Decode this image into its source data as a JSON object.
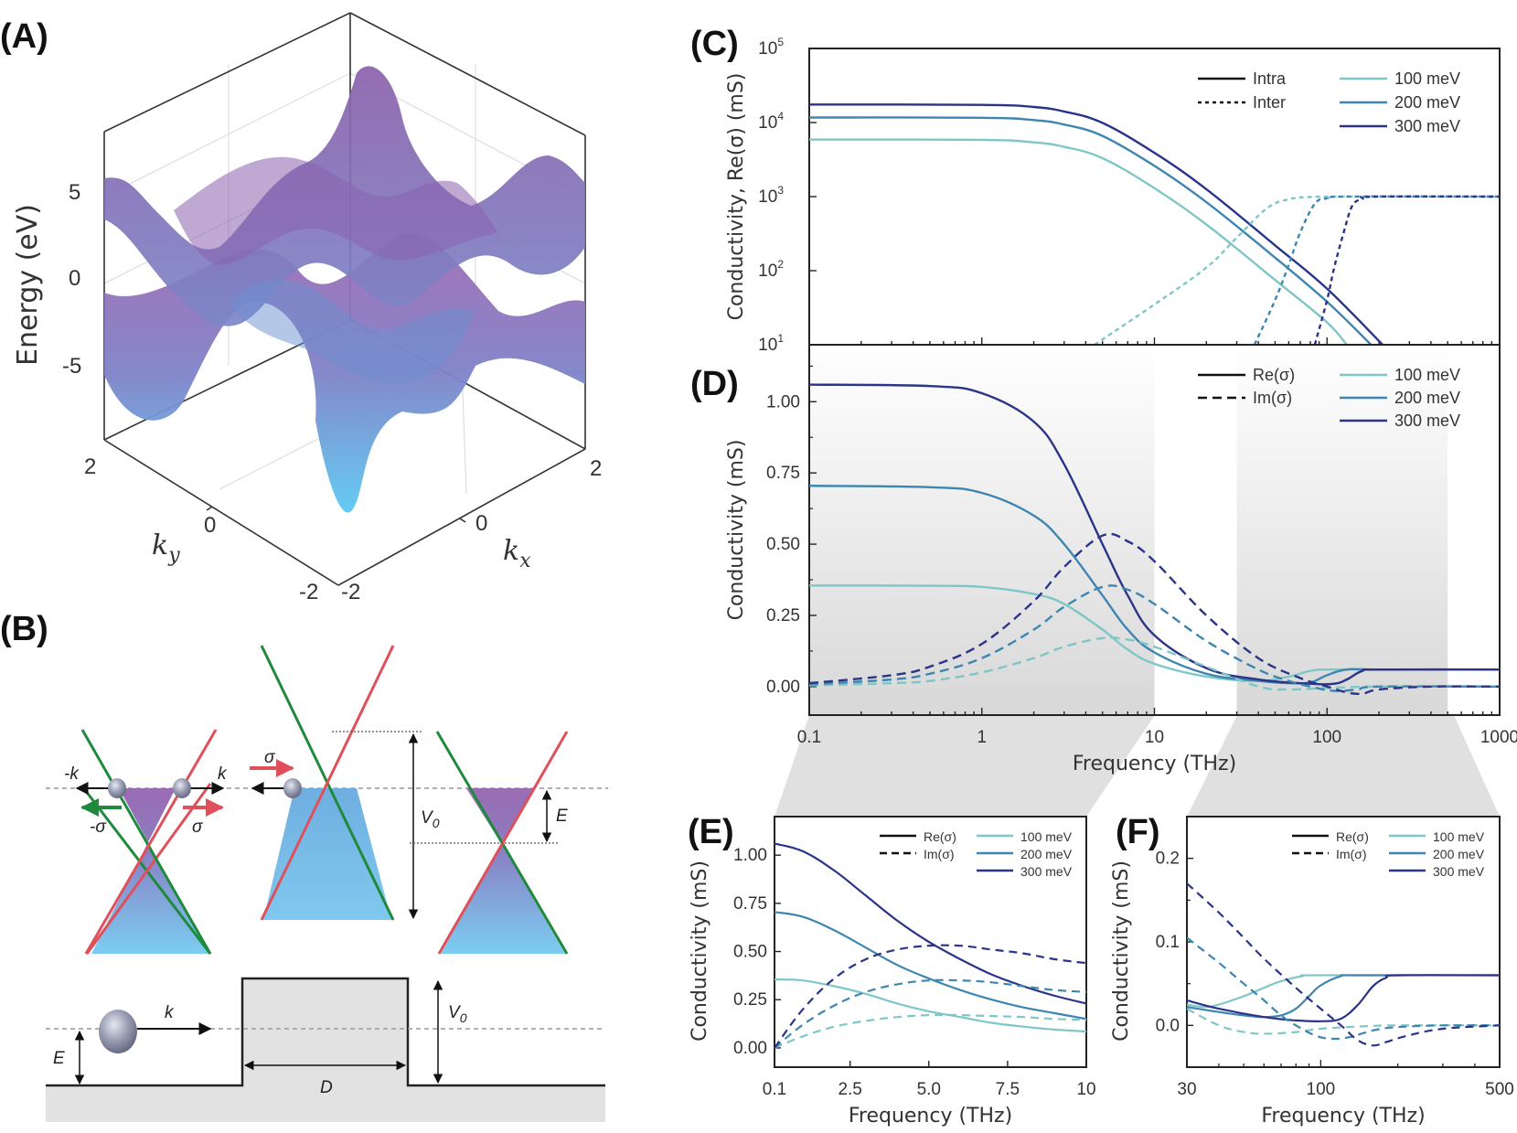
{
  "panels": {
    "A": {
      "label": "(A)",
      "zlabel": "Energy (eV)",
      "zticks": [
        "5",
        "0",
        "-5"
      ],
      "xlabel": "k",
      "xlabel_sub": "x",
      "ylabel": "k",
      "ylabel_sub": "y",
      "xticks": [
        "-2",
        "0",
        "2"
      ],
      "yticks": [
        "2",
        "0",
        "-2"
      ],
      "colors": {
        "top": "#9b67b0",
        "mid": "#7d7fc4",
        "bottom": "#5fc8f0"
      }
    },
    "B": {
      "label": "(B)",
      "labels": {
        "minus_k": "-k",
        "k": "k",
        "minus_sigma": "-σ",
        "sigma": "σ",
        "sigma_mid": "σ",
        "V0": "V",
        "V0_sub": "0",
        "E": "E",
        "k_bottom": "k",
        "E_bottom": "E",
        "D": "D",
        "V0_bottom": "V",
        "V0_bottom_sub": "0"
      },
      "colors": {
        "green": "#1f8a3c",
        "red": "#e0505a",
        "fill_top": "#9a6bb3",
        "fill_bottom": "#7cc8ee",
        "barrier": "#e2e2e2"
      }
    }
  },
  "legend": {
    "intra": "Intra",
    "inter": "Inter",
    "re": "Re(σ)",
    "im": "Im(σ)",
    "series": [
      "100 meV",
      "200 meV",
      "300 meV"
    ]
  },
  "chart_data": [
    {
      "id": "C",
      "label": "(C)",
      "type": "line",
      "title": "",
      "xlabel": "",
      "ylabel": "Conductivity, Re(σ) (mS)",
      "xscale": "log",
      "yscale": "log",
      "xlim": [
        0.1,
        1000
      ],
      "ylim": [
        10,
        100000
      ],
      "yticks": [
        {
          "v": 10,
          "base": "10",
          "exp": "1"
        },
        {
          "v": 100,
          "base": "10",
          "exp": "2"
        },
        {
          "v": 1000,
          "base": "10",
          "exp": "3"
        },
        {
          "v": 10000,
          "base": "10",
          "exp": "4"
        },
        {
          "v": 100000,
          "base": "10",
          "exp": "5"
        }
      ],
      "legend_position": "top-right",
      "series": [
        {
          "name": "100 meV",
          "kind": "Intra",
          "color": "#7fc6c6",
          "x": [
            0.1,
            1,
            2,
            3,
            5,
            10,
            20,
            50,
            100,
            130
          ],
          "y": [
            5900,
            5850,
            5400,
            4700,
            3300,
            1300,
            420,
            75,
            20,
            10
          ]
        },
        {
          "name": "200 meV",
          "kind": "Intra",
          "color": "#3e86b0",
          "x": [
            0.1,
            1,
            2,
            3,
            5,
            10,
            20,
            50,
            100,
            180
          ],
          "y": [
            11700,
            11600,
            10800,
            9400,
            6600,
            2600,
            840,
            150,
            38,
            10
          ]
        },
        {
          "name": "300 meV",
          "kind": "Intra",
          "color": "#2a3488",
          "x": [
            0.1,
            1,
            2,
            3,
            5,
            10,
            20,
            50,
            100,
            210
          ],
          "y": [
            17500,
            17300,
            16200,
            14100,
            9900,
            3900,
            1260,
            220,
            57,
            10
          ]
        },
        {
          "name": "100 meV",
          "kind": "Inter",
          "color": "#7fc6c6",
          "x": [
            4.5,
            10,
            20,
            30,
            45,
            60,
            80,
            120,
            1000
          ],
          "y": [
            10,
            35,
            110,
            280,
            700,
            920,
            990,
            1000,
            1000
          ]
        },
        {
          "name": "200 meV",
          "kind": "Inter",
          "color": "#3e86b0",
          "x": [
            38,
            50,
            60,
            70,
            85,
            100,
            130,
            1000
          ],
          "y": [
            10,
            40,
            120,
            330,
            800,
            950,
            1000,
            1000
          ]
        },
        {
          "name": "300 meV",
          "kind": "Inter",
          "color": "#2a3488",
          "x": [
            85,
            100,
            110,
            125,
            140,
            160,
            190,
            1000
          ],
          "y": [
            10,
            40,
            110,
            330,
            750,
            930,
            1000,
            1000
          ]
        }
      ]
    },
    {
      "id": "D",
      "label": "(D)",
      "type": "line",
      "xlabel": "Frequency (THz)",
      "ylabel": "Conductivity (mS)",
      "xscale": "log",
      "yscale": "linear",
      "xlim": [
        0.1,
        1000
      ],
      "ylim": [
        -0.1,
        1.2
      ],
      "xticks": [
        "0.1",
        "1",
        "10",
        "100",
        "1000"
      ],
      "yticks": [
        "0.00",
        "0.25",
        "0.50",
        "0.75",
        "1.00"
      ],
      "shaded_ranges": [
        [
          0.1,
          10
        ],
        [
          30,
          500
        ]
      ],
      "legend_position": "top-right",
      "series": [
        {
          "name": "100 meV",
          "part": "Re",
          "color": "#7fc6c6",
          "x": [
            0.1,
            0.5,
            1,
            2,
            3,
            5,
            7,
            10,
            20,
            40,
            60,
            80,
            100,
            200,
            1000
          ],
          "y": [
            0.355,
            0.354,
            0.35,
            0.325,
            0.29,
            0.2,
            0.13,
            0.08,
            0.035,
            0.02,
            0.035,
            0.055,
            0.06,
            0.06,
            0.06
          ]
        },
        {
          "name": "200 meV",
          "part": "Re",
          "color": "#3e86b0",
          "x": [
            0.1,
            0.5,
            1,
            2,
            3,
            5,
            7,
            10,
            20,
            40,
            60,
            80,
            100,
            130,
            200,
            1000
          ],
          "y": [
            0.705,
            0.7,
            0.68,
            0.6,
            0.5,
            0.32,
            0.2,
            0.12,
            0.045,
            0.02,
            0.012,
            0.015,
            0.04,
            0.06,
            0.06,
            0.06
          ]
        },
        {
          "name": "300 meV",
          "part": "Re",
          "color": "#2a3488",
          "x": [
            0.1,
            0.5,
            1,
            2,
            3,
            5,
            7,
            10,
            20,
            40,
            80,
            110,
            130,
            160,
            200,
            1000
          ],
          "y": [
            1.06,
            1.055,
            1.03,
            0.93,
            0.78,
            0.5,
            0.32,
            0.18,
            0.065,
            0.025,
            0.01,
            0.01,
            0.025,
            0.055,
            0.06,
            0.06
          ]
        },
        {
          "name": "100 meV",
          "part": "Im",
          "color": "#7fc6c6",
          "x": [
            0.1,
            0.3,
            0.5,
            1,
            2,
            3,
            5,
            7,
            10,
            20,
            40,
            60,
            100,
            200,
            1000
          ],
          "y": [
            0.004,
            0.012,
            0.02,
            0.05,
            0.1,
            0.14,
            0.17,
            0.165,
            0.14,
            0.07,
            0.0,
            -0.01,
            -0.005,
            0.0,
            0.0
          ]
        },
        {
          "name": "200 meV",
          "part": "Im",
          "color": "#3e86b0",
          "x": [
            0.1,
            0.3,
            0.5,
            1,
            2,
            3,
            5,
            7,
            10,
            20,
            40,
            60,
            80,
            110,
            150,
            200,
            1000
          ],
          "y": [
            0.008,
            0.025,
            0.045,
            0.1,
            0.2,
            0.28,
            0.35,
            0.34,
            0.29,
            0.16,
            0.06,
            0.02,
            0.0,
            -0.015,
            -0.01,
            0.0,
            0.0
          ]
        },
        {
          "name": "300 meV",
          "part": "Im",
          "color": "#2a3488",
          "x": [
            0.1,
            0.3,
            0.5,
            1,
            2,
            3,
            5,
            7,
            10,
            20,
            40,
            70,
            100,
            130,
            160,
            200,
            400,
            1000
          ],
          "y": [
            0.012,
            0.04,
            0.07,
            0.15,
            0.3,
            0.42,
            0.53,
            0.51,
            0.44,
            0.25,
            0.1,
            0.03,
            0.0,
            -0.02,
            -0.025,
            -0.01,
            0.0,
            0.0
          ]
        }
      ]
    },
    {
      "id": "E",
      "label": "(E)",
      "type": "line",
      "xlabel": "Frequency (THz)",
      "ylabel": "Conductivity (mS)",
      "xscale": "linear",
      "yscale": "linear",
      "xlim": [
        0.1,
        10
      ],
      "ylim": [
        -0.1,
        1.2
      ],
      "xticks": [
        {
          "v": 0.1,
          "t": "0.1"
        },
        {
          "v": 2.5,
          "t": "2.5"
        },
        {
          "v": 5.0,
          "t": "5.0"
        },
        {
          "v": 7.5,
          "t": "7.5"
        },
        {
          "v": 10,
          "t": "10"
        }
      ],
      "yticks": [
        "0.00",
        "0.25",
        "0.50",
        "0.75",
        "1.00"
      ],
      "legend_position": "top-right",
      "series": [
        {
          "name": "100 meV",
          "part": "Re",
          "color": "#7fc6c6",
          "x": [
            0.1,
            1,
            2,
            3,
            4,
            5,
            6,
            7,
            8,
            9,
            10
          ],
          "y": [
            0.355,
            0.35,
            0.32,
            0.28,
            0.23,
            0.19,
            0.16,
            0.13,
            0.11,
            0.095,
            0.085
          ]
        },
        {
          "name": "200 meV",
          "part": "Re",
          "color": "#3e86b0",
          "x": [
            0.1,
            1,
            2,
            3,
            4,
            5,
            6,
            7,
            8,
            9,
            10
          ],
          "y": [
            0.705,
            0.68,
            0.61,
            0.52,
            0.43,
            0.36,
            0.3,
            0.25,
            0.21,
            0.18,
            0.15
          ]
        },
        {
          "name": "300 meV",
          "part": "Re",
          "color": "#2a3488",
          "x": [
            0.1,
            1,
            2,
            3,
            4,
            5,
            6,
            7,
            8,
            9,
            10
          ],
          "y": [
            1.06,
            1.02,
            0.92,
            0.79,
            0.66,
            0.55,
            0.46,
            0.38,
            0.32,
            0.27,
            0.23
          ]
        },
        {
          "name": "100 meV",
          "part": "Im",
          "color": "#7fc6c6",
          "x": [
            0.1,
            1,
            2,
            3,
            4,
            5,
            6,
            7,
            8,
            9,
            10
          ],
          "y": [
            0.0,
            0.06,
            0.11,
            0.14,
            0.16,
            0.17,
            0.17,
            0.165,
            0.16,
            0.15,
            0.145
          ]
        },
        {
          "name": "200 meV",
          "part": "Im",
          "color": "#3e86b0",
          "x": [
            0.1,
            1,
            2,
            3,
            4,
            5,
            6,
            7,
            8,
            9,
            10
          ],
          "y": [
            0.0,
            0.12,
            0.22,
            0.29,
            0.33,
            0.35,
            0.35,
            0.34,
            0.32,
            0.3,
            0.29
          ]
        },
        {
          "name": "300 meV",
          "part": "Im",
          "color": "#2a3488",
          "x": [
            0.1,
            1,
            2,
            3,
            4,
            5,
            6,
            7,
            8,
            9,
            10
          ],
          "y": [
            0.0,
            0.2,
            0.36,
            0.46,
            0.51,
            0.53,
            0.53,
            0.51,
            0.49,
            0.46,
            0.44
          ]
        }
      ]
    },
    {
      "id": "F",
      "label": "(F)",
      "type": "line",
      "xlabel": "Frequency (THz)",
      "ylabel": "Conductivity (mS)",
      "xscale": "log",
      "yscale": "linear",
      "xlim": [
        30,
        500
      ],
      "ylim": [
        -0.05,
        0.25
      ],
      "xticks": [
        {
          "v": 30,
          "t": "30"
        },
        {
          "v": 100,
          "t": "100"
        },
        {
          "v": 500,
          "t": "500"
        }
      ],
      "yticks": [
        "0.0",
        "0.1",
        "0.2"
      ],
      "legend_position": "top-right",
      "series": [
        {
          "name": "100 meV",
          "part": "Re",
          "color": "#7fc6c6",
          "x": [
            30,
            35,
            40,
            50,
            60,
            70,
            85,
            100,
            500
          ],
          "y": [
            0.025,
            0.022,
            0.025,
            0.035,
            0.045,
            0.053,
            0.059,
            0.06,
            0.06
          ]
        },
        {
          "name": "200 meV",
          "part": "Re",
          "color": "#3e86b0",
          "x": [
            30,
            40,
            50,
            60,
            70,
            80,
            90,
            100,
            120,
            140,
            500
          ],
          "y": [
            0.022,
            0.016,
            0.012,
            0.01,
            0.012,
            0.02,
            0.035,
            0.048,
            0.059,
            0.06,
            0.06
          ]
        },
        {
          "name": "300 meV",
          "part": "Re",
          "color": "#2a3488",
          "x": [
            30,
            40,
            60,
            80,
            100,
            120,
            140,
            160,
            180,
            200,
            500
          ],
          "y": [
            0.03,
            0.02,
            0.01,
            0.006,
            0.005,
            0.008,
            0.025,
            0.047,
            0.057,
            0.06,
            0.06
          ]
        },
        {
          "name": "100 meV",
          "part": "Im",
          "color": "#7fc6c6",
          "x": [
            30,
            40,
            50,
            60,
            80,
            100,
            150,
            200,
            500
          ],
          "y": [
            0.02,
            0.0,
            -0.008,
            -0.01,
            -0.008,
            -0.004,
            -0.001,
            0.0,
            0.0
          ]
        },
        {
          "name": "200 meV",
          "part": "Im",
          "color": "#3e86b0",
          "x": [
            30,
            40,
            50,
            60,
            70,
            80,
            95,
            110,
            130,
            160,
            200,
            300,
            500
          ],
          "y": [
            0.105,
            0.075,
            0.05,
            0.03,
            0.012,
            0.0,
            -0.012,
            -0.016,
            -0.014,
            -0.006,
            -0.002,
            0.0,
            0.0
          ]
        },
        {
          "name": "300 meV",
          "part": "Im",
          "color": "#2a3488",
          "x": [
            30,
            40,
            50,
            60,
            80,
            100,
            120,
            140,
            160,
            180,
            220,
            300,
            500
          ],
          "y": [
            0.17,
            0.135,
            0.105,
            0.08,
            0.045,
            0.02,
            0.0,
            -0.018,
            -0.024,
            -0.02,
            -0.012,
            -0.004,
            0.0
          ]
        }
      ]
    }
  ]
}
